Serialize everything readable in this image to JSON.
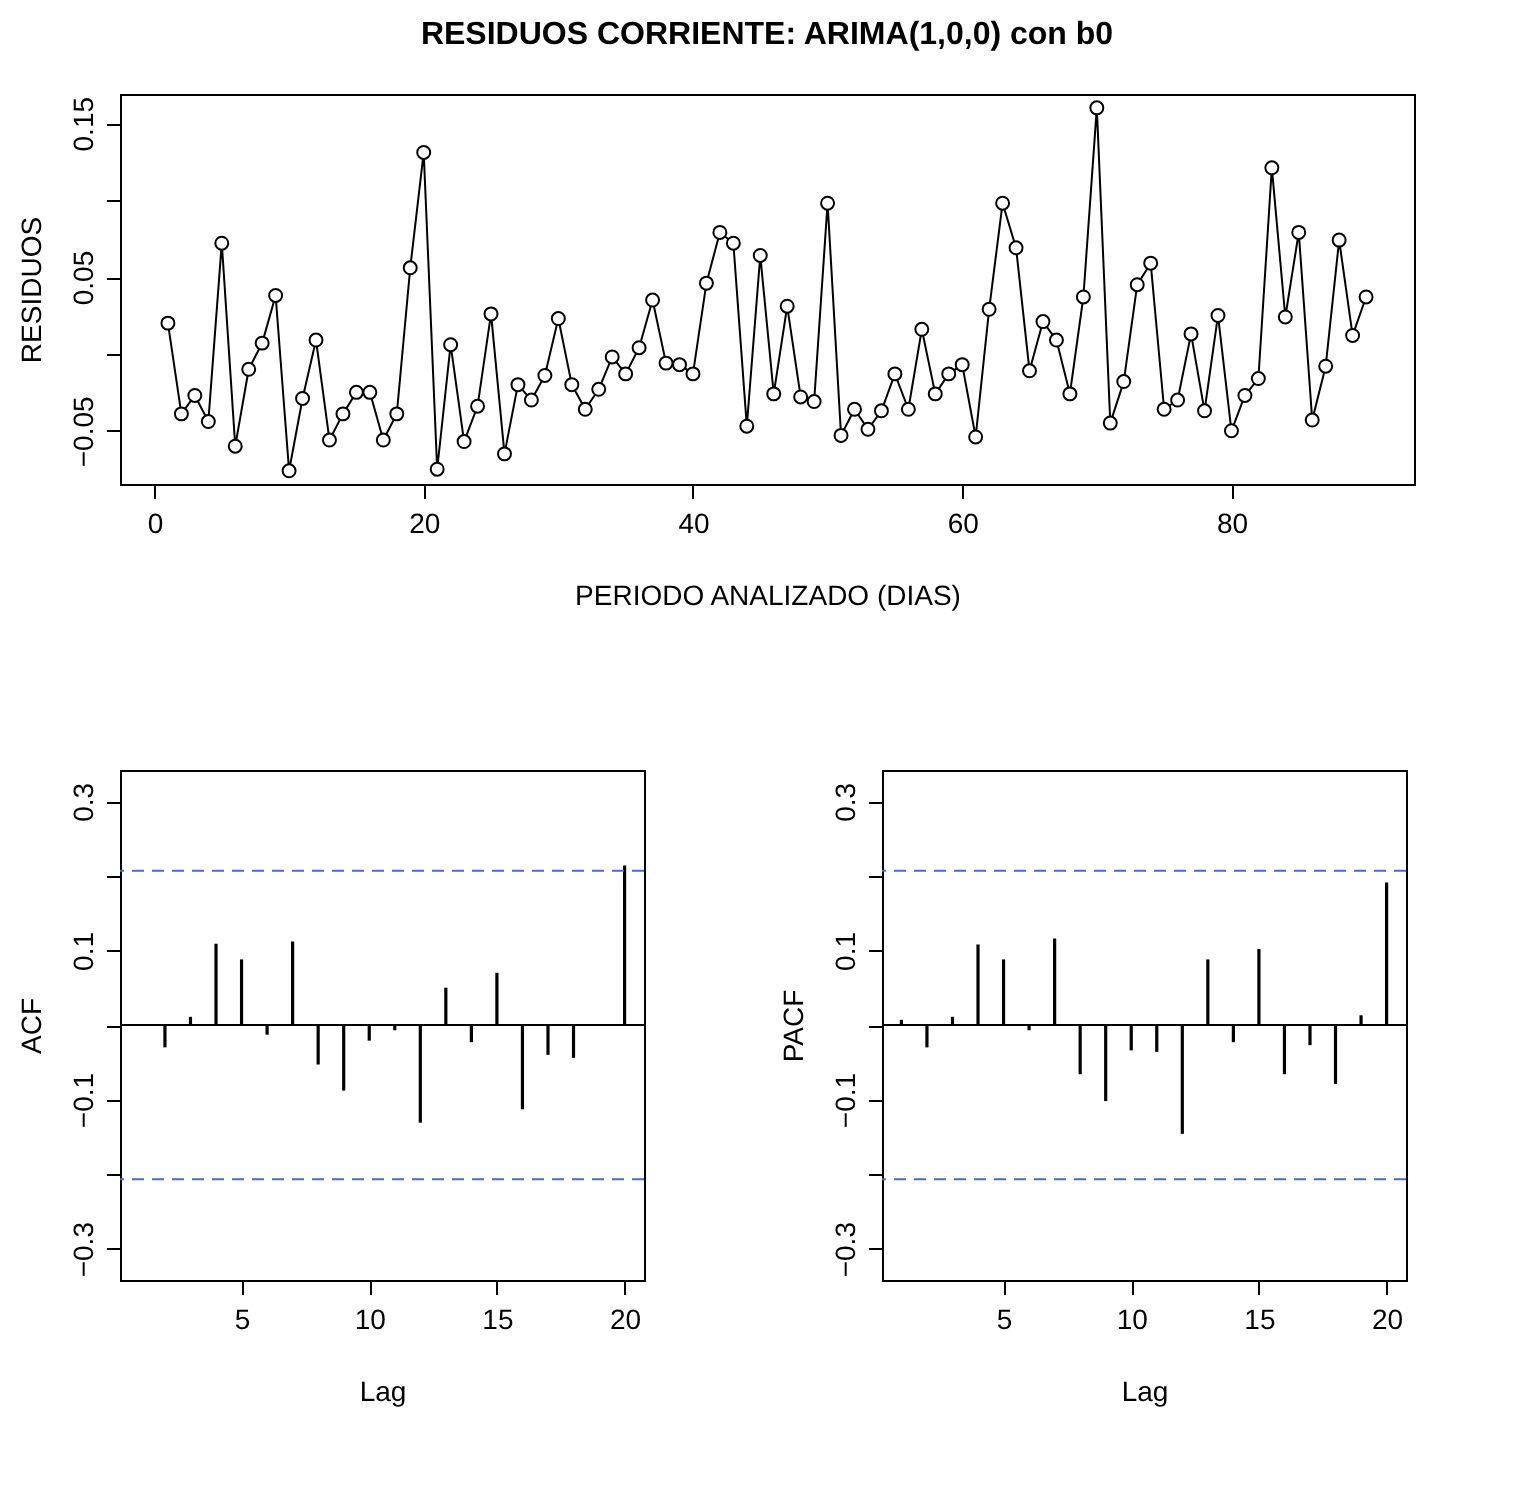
{
  "chart_data": [
    {
      "type": "line",
      "title": "RESIDUOS CORRIENTE: ARIMA(1,0,0) con b0",
      "xlabel": "PERIODO ANALIZADO (DIAS)",
      "ylabel": "RESIDUOS",
      "x": [
        1,
        2,
        3,
        4,
        5,
        6,
        7,
        8,
        9,
        10,
        11,
        12,
        13,
        14,
        15,
        16,
        17,
        18,
        19,
        20,
        21,
        22,
        23,
        24,
        25,
        26,
        27,
        28,
        29,
        30,
        31,
        32,
        33,
        34,
        35,
        36,
        37,
        38,
        39,
        40,
        41,
        42,
        43,
        44,
        45,
        46,
        47,
        48,
        49,
        50,
        51,
        52,
        53,
        54,
        55,
        56,
        57,
        58,
        59,
        60,
        61,
        62,
        63,
        64,
        65,
        66,
        67,
        68,
        69,
        70,
        71,
        72,
        73,
        74,
        75,
        76,
        77,
        78,
        79,
        80,
        81,
        82,
        83,
        84,
        85,
        86,
        87,
        88,
        89,
        90
      ],
      "series": [
        {
          "color": "#000000",
          "values": [
            0.02,
            -0.039,
            -0.027,
            -0.044,
            0.072,
            -0.06,
            -0.01,
            0.007,
            0.038,
            -0.076,
            -0.029,
            0.009,
            -0.056,
            -0.039,
            -0.025,
            -0.025,
            -0.056,
            -0.039,
            0.056,
            0.131,
            -0.075,
            0.006,
            -0.057,
            -0.034,
            0.026,
            -0.065,
            -0.02,
            -0.03,
            -0.014,
            0.023,
            -0.02,
            -0.036,
            -0.023,
            -0.002,
            -0.013,
            0.004,
            0.035,
            -0.006,
            -0.007,
            -0.013,
            0.046,
            0.079,
            0.072,
            -0.047,
            0.064,
            -0.026,
            0.031,
            -0.028,
            -0.031,
            0.098,
            -0.053,
            -0.036,
            -0.049,
            -0.037,
            -0.013,
            -0.036,
            0.016,
            -0.026,
            -0.013,
            -0.007,
            -0.054,
            0.029,
            0.098,
            0.069,
            -0.011,
            0.021,
            0.009,
            -0.026,
            0.037,
            0.16,
            -0.045,
            -0.018,
            0.045,
            0.059,
            -0.036,
            -0.03,
            0.013,
            -0.037,
            0.025,
            -0.05,
            -0.027,
            -0.016,
            0.121,
            0.024,
            0.079,
            -0.043,
            -0.008,
            0.074,
            0.012,
            0.037
          ]
        }
      ],
      "xlim": [
        -2.56,
        93.56
      ],
      "xticks": [
        0,
        20,
        40,
        60,
        80
      ],
      "ylim": [
        -0.0846,
        0.169
      ],
      "yticks": [
        {
          "value": -0.05,
          "label": "−0.05"
        },
        {
          "value": 0,
          "label": null
        },
        0.05,
        {
          "value": 0.1,
          "label": null
        },
        0.15
      ],
      "marker": "circle"
    },
    {
      "type": "bar",
      "xlabel": "Lag",
      "ylabel": "ACF",
      "x": [
        1,
        2,
        3,
        4,
        5,
        6,
        7,
        8,
        9,
        10,
        11,
        12,
        13,
        14,
        15,
        16,
        17,
        18,
        19,
        20
      ],
      "series": [
        {
          "color": "#000000",
          "values": [
            0.0,
            -0.03,
            0.011,
            0.109,
            0.088,
            -0.013,
            0.112,
            -0.053,
            -0.088,
            -0.021,
            -0.007,
            -0.131,
            0.05,
            -0.023,
            0.07,
            -0.113,
            -0.04,
            -0.044,
            0.0,
            0.214
          ]
        }
      ],
      "xlim": [
        0.24,
        20.76
      ],
      "xticks": [
        5,
        10,
        15,
        20
      ],
      "ylim": [
        -0.342,
        0.342
      ],
      "yticks": [
        {
          "value": -0.3,
          "label": "−0.3"
        },
        {
          "value": -0.2,
          "label": null
        },
        {
          "value": -0.1,
          "label": "−0.1"
        },
        {
          "value": 0,
          "label": null
        },
        0.1,
        {
          "value": 0.2,
          "label": null
        },
        0.3
      ],
      "ref_lines": [
        {
          "axis": "y",
          "value": 0,
          "color": "#000000",
          "line_style": "solid"
        },
        {
          "axis": "y",
          "value": 0.207,
          "color": "#4a6cc0",
          "line_style": "dashed"
        },
        {
          "axis": "y",
          "value": -0.207,
          "color": "#4a6cc0",
          "line_style": "dashed"
        }
      ]
    },
    {
      "type": "bar",
      "xlabel": "Lag",
      "ylabel": "PACF",
      "x": [
        1,
        2,
        3,
        4,
        5,
        6,
        7,
        8,
        9,
        10,
        11,
        12,
        13,
        14,
        15,
        16,
        17,
        18,
        19,
        20
      ],
      "series": [
        {
          "color": "#000000",
          "values": [
            0.007,
            -0.03,
            0.011,
            0.108,
            0.088,
            -0.007,
            0.116,
            -0.066,
            -0.102,
            -0.034,
            -0.036,
            -0.146,
            0.088,
            -0.023,
            0.102,
            -0.066,
            -0.027,
            -0.079,
            0.013,
            0.191
          ]
        }
      ],
      "xlim": [
        0.24,
        20.76
      ],
      "xticks": [
        5,
        10,
        15,
        20
      ],
      "ylim": [
        -0.342,
        0.342
      ],
      "yticks": [
        {
          "value": -0.3,
          "label": "−0.3"
        },
        {
          "value": -0.2,
          "label": null
        },
        {
          "value": -0.1,
          "label": "−0.1"
        },
        {
          "value": 0,
          "label": null
        },
        0.1,
        {
          "value": 0.2,
          "label": null
        },
        0.3
      ],
      "ref_lines": [
        {
          "axis": "y",
          "value": 0,
          "color": "#000000",
          "line_style": "solid"
        },
        {
          "axis": "y",
          "value": 0.207,
          "color": "#4a6cc0",
          "line_style": "dashed"
        },
        {
          "axis": "y",
          "value": -0.207,
          "color": "#4a6cc0",
          "line_style": "dashed"
        }
      ]
    }
  ]
}
